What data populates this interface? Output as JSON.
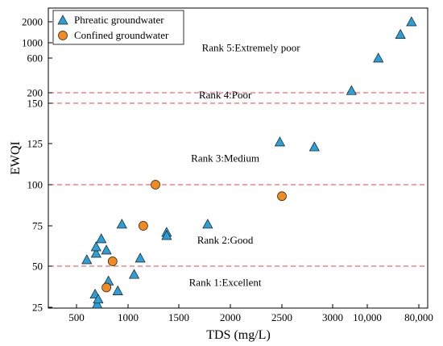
{
  "chart_data": {
    "type": "scatter",
    "xlabel": "TDS (mg/L)",
    "ylabel": "EWQI",
    "x_ticks": [
      {
        "label": "500",
        "value": 500
      },
      {
        "label": "1000",
        "value": 1000
      },
      {
        "label": "1500",
        "value": 1500
      },
      {
        "label": "2000",
        "value": 2000
      },
      {
        "label": "2500",
        "value": 2500
      },
      {
        "label": "3000",
        "value": 3000
      },
      {
        "label": "10,000",
        "value": 10000
      },
      {
        "label": "80,000",
        "value": 80000
      }
    ],
    "y_ticks": [
      {
        "label": "25",
        "value": 25
      },
      {
        "label": "50",
        "value": 50
      },
      {
        "label": "75",
        "value": 75
      },
      {
        "label": "100",
        "value": 100
      },
      {
        "label": "125",
        "value": 125
      },
      {
        "label": "150",
        "value": 150
      },
      {
        "label": "200",
        "value": 200
      },
      {
        "label": "600",
        "value": 600
      },
      {
        "label": "1000",
        "value": 1000
      },
      {
        "label": "2000",
        "value": 2000
      }
    ],
    "thresholds": [
      50,
      100,
      150,
      200
    ],
    "zones": [
      {
        "label": "Rank 1:Excellent",
        "x": 1950,
        "y": 38
      },
      {
        "label": "Rank 2:Good",
        "x": 1950,
        "y": 64
      },
      {
        "label": "Rank 3:Medium",
        "x": 1950,
        "y": 114
      },
      {
        "label": "Rank 4:Poor",
        "x": 1950,
        "y": 173
      },
      {
        "label": "Rank 5:Extremely poor",
        "x": 2200,
        "y": 780
      }
    ],
    "legend": {
      "position": "top-left"
    },
    "series": [
      {
        "name": "Phreatic groundwater",
        "marker": "triangle",
        "color": "#2a9fd8",
        "points": [
          {
            "x": 600,
            "y": 54
          },
          {
            "x": 680,
            "y": 33
          },
          {
            "x": 690,
            "y": 58
          },
          {
            "x": 690,
            "y": 62
          },
          {
            "x": 700,
            "y": 27
          },
          {
            "x": 710,
            "y": 30
          },
          {
            "x": 740,
            "y": 67
          },
          {
            "x": 790,
            "y": 60
          },
          {
            "x": 810,
            "y": 41
          },
          {
            "x": 900,
            "y": 35
          },
          {
            "x": 940,
            "y": 76
          },
          {
            "x": 1060,
            "y": 45
          },
          {
            "x": 1120,
            "y": 55
          },
          {
            "x": 1380,
            "y": 71
          },
          {
            "x": 1380,
            "y": 69
          },
          {
            "x": 1780,
            "y": 76
          },
          {
            "x": 2480,
            "y": 126
          },
          {
            "x": 2820,
            "y": 123
          },
          {
            "x": 6800,
            "y": 225
          },
          {
            "x": 25000,
            "y": 600
          },
          {
            "x": 55000,
            "y": 1400
          },
          {
            "x": 70000,
            "y": 2000
          }
        ]
      },
      {
        "name": "Confined groundwater",
        "marker": "circle",
        "color": "#f28a1e",
        "points": [
          {
            "x": 790,
            "y": 37
          },
          {
            "x": 850,
            "y": 53
          },
          {
            "x": 1150,
            "y": 75
          },
          {
            "x": 1270,
            "y": 100
          },
          {
            "x": 2500,
            "y": 93
          }
        ]
      }
    ]
  }
}
